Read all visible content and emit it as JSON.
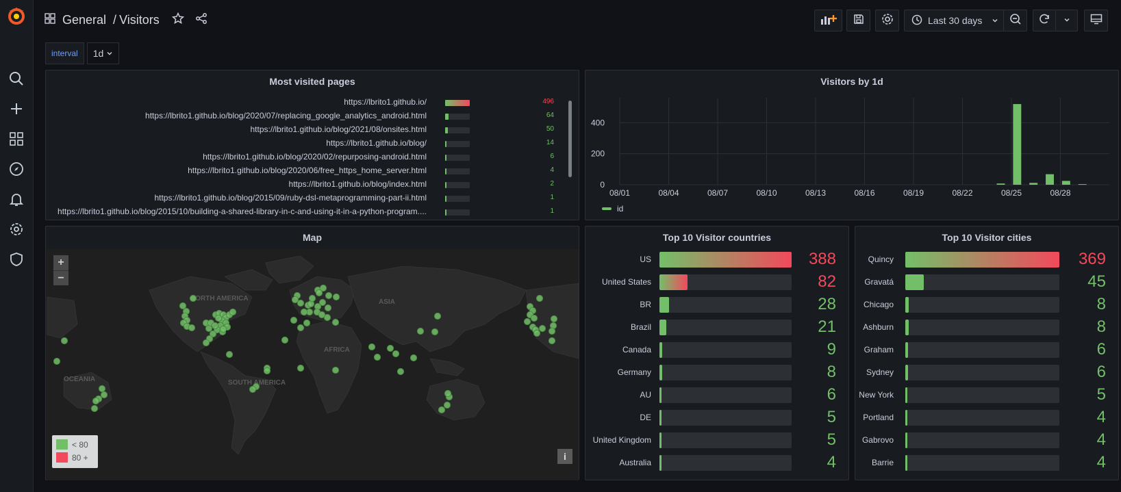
{
  "sidebar": {
    "items": [
      "search-icon",
      "plus-icon",
      "dashboards-icon",
      "explore-icon",
      "alerting-icon",
      "configuration-icon",
      "shield-icon"
    ]
  },
  "header": {
    "breadcrumb_folder": "General",
    "breadcrumb_separator": "/",
    "breadcrumb_dashboard": "Visitors",
    "time_range": "Last 30 days"
  },
  "variables": {
    "interval_label": "interval",
    "interval_value": "1d"
  },
  "colors": {
    "green": "#73bf69",
    "red": "#f2495c",
    "panel": "#181b1f",
    "track": "#2c2f34"
  },
  "most_visited": {
    "title": "Most visited pages",
    "rows": [
      {
        "name": "https://lbrito1.github.io/",
        "value": "496",
        "fill": 1.0,
        "color": "#f2495c"
      },
      {
        "name": "https://lbrito1.github.io/blog/2020/07/replacing_google_analytics_android.html",
        "value": "64",
        "fill": 0.13,
        "color": "#73bf69"
      },
      {
        "name": "https://lbrito1.github.io/blog/2021/08/onsites.html",
        "value": "50",
        "fill": 0.1,
        "color": "#73bf69"
      },
      {
        "name": "https://lbrito1.github.io/blog/",
        "value": "14",
        "fill": 0.03,
        "color": "#73bf69"
      },
      {
        "name": "https://lbrito1.github.io/blog/2020/02/repurposing-android.html",
        "value": "6",
        "fill": 0.012,
        "color": "#73bf69"
      },
      {
        "name": "https://lbrito1.github.io/blog/2020/06/free_https_home_server.html",
        "value": "4",
        "fill": 0.008,
        "color": "#73bf69"
      },
      {
        "name": "https://lbrito1.github.io/blog/index.html",
        "value": "2",
        "fill": 0.004,
        "color": "#73bf69"
      },
      {
        "name": "https://lbrito1.github.io/blog/2015/09/ruby-dsl-metaprogramming-part-ii.html",
        "value": "1",
        "fill": 0.002,
        "color": "#73bf69"
      },
      {
        "name": "https://lbrito1.github.io/blog/2015/10/building-a-shared-library-in-c-and-using-it-in-a-python-program....",
        "value": "1",
        "fill": 0.002,
        "color": "#73bf69"
      }
    ]
  },
  "chart_data": {
    "type": "bar",
    "title": "Visitors by 1d",
    "x": [
      "08/01",
      "08/02",
      "08/03",
      "08/04",
      "08/05",
      "08/06",
      "08/07",
      "08/08",
      "08/09",
      "08/10",
      "08/11",
      "08/12",
      "08/13",
      "08/14",
      "08/15",
      "08/16",
      "08/17",
      "08/18",
      "08/19",
      "08/20",
      "08/21",
      "08/22",
      "08/23",
      "08/24",
      "08/25",
      "08/26",
      "08/27",
      "08/28",
      "08/29",
      "08/30"
    ],
    "tick_labels": [
      "08/01",
      "08/04",
      "08/07",
      "08/10",
      "08/13",
      "08/16",
      "08/19",
      "08/22",
      "08/25",
      "08/28"
    ],
    "series": [
      {
        "name": "id",
        "values": [
          0,
          0,
          0,
          0,
          0,
          0,
          0,
          0,
          0,
          0,
          0,
          0,
          0,
          0,
          0,
          0,
          0,
          0,
          0,
          0,
          0,
          0,
          0,
          8,
          520,
          12,
          68,
          25,
          4,
          0
        ]
      }
    ],
    "yticks": [
      0,
      200,
      400
    ],
    "ylim": [
      0,
      560
    ],
    "legend": "bottom-left",
    "grid": true
  },
  "map": {
    "title": "Map",
    "zoom_in": "+",
    "zoom_out": "−",
    "legend": [
      {
        "label": "< 80",
        "color": "#73bf69"
      },
      {
        "label": "80 +",
        "color": "#f2495c"
      }
    ],
    "info": "i",
    "labels": [
      "NORTH AMERICA",
      "ASIA",
      "AFRICA",
      "SOUTH AMERICA",
      "OCEANIA"
    ]
  },
  "countries": {
    "title": "Top 10 Visitor countries",
    "rows": [
      {
        "name": "US",
        "value": "388",
        "fill": 1.0,
        "color": "#f2495c"
      },
      {
        "name": "United States",
        "value": "82",
        "fill": 0.21,
        "color": "#f2495c"
      },
      {
        "name": "BR",
        "value": "28",
        "fill": 0.072,
        "color": "#73bf69"
      },
      {
        "name": "Brazil",
        "value": "21",
        "fill": 0.054,
        "color": "#73bf69"
      },
      {
        "name": "Canada",
        "value": "9",
        "fill": 0.023,
        "color": "#73bf69"
      },
      {
        "name": "Germany",
        "value": "8",
        "fill": 0.02,
        "color": "#73bf69"
      },
      {
        "name": "AU",
        "value": "6",
        "fill": 0.015,
        "color": "#73bf69"
      },
      {
        "name": "DE",
        "value": "5",
        "fill": 0.013,
        "color": "#73bf69"
      },
      {
        "name": "United Kingdom",
        "value": "5",
        "fill": 0.013,
        "color": "#73bf69"
      },
      {
        "name": "Australia",
        "value": "4",
        "fill": 0.01,
        "color": "#73bf69"
      }
    ]
  },
  "cities": {
    "title": "Top 10 Visitor cities",
    "rows": [
      {
        "name": "Quincy",
        "value": "369",
        "fill": 1.0,
        "color": "#f2495c"
      },
      {
        "name": "Gravatá",
        "value": "45",
        "fill": 0.12,
        "color": "#73bf69"
      },
      {
        "name": "Chicago",
        "value": "8",
        "fill": 0.022,
        "color": "#73bf69"
      },
      {
        "name": "Ashburn",
        "value": "8",
        "fill": 0.022,
        "color": "#73bf69"
      },
      {
        "name": "Graham",
        "value": "6",
        "fill": 0.016,
        "color": "#73bf69"
      },
      {
        "name": "Sydney",
        "value": "6",
        "fill": 0.016,
        "color": "#73bf69"
      },
      {
        "name": "New York",
        "value": "5",
        "fill": 0.014,
        "color": "#73bf69"
      },
      {
        "name": "Portland",
        "value": "4",
        "fill": 0.011,
        "color": "#73bf69"
      },
      {
        "name": "Gabrovo",
        "value": "4",
        "fill": 0.011,
        "color": "#73bf69"
      },
      {
        "name": "Barrie",
        "value": "4",
        "fill": 0.011,
        "color": "#73bf69"
      }
    ]
  }
}
